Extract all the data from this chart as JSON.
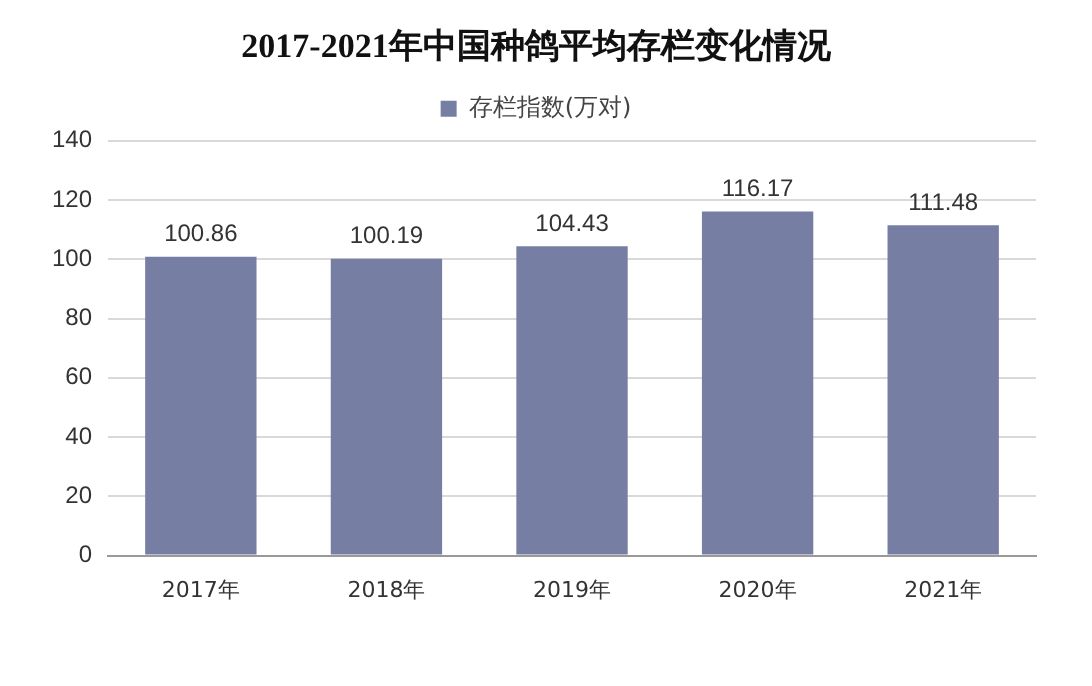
{
  "chart_data": {
    "type": "bar",
    "title": "2017-2021年中国种鸽平均存栏变化情况",
    "categories": [
      "2017年",
      "2018年",
      "2019年",
      "2020年",
      "2021年"
    ],
    "series": [
      {
        "name": "存栏指数(万对)",
        "color": "#767ea4",
        "values": [
          100.86,
          100.19,
          104.43,
          116.17,
          111.48
        ]
      }
    ],
    "ylim": [
      0,
      140
    ],
    "yticks": [
      0,
      20,
      40,
      60,
      80,
      100,
      120,
      140
    ],
    "grid": "y",
    "legend": "top",
    "data_labels": true
  }
}
